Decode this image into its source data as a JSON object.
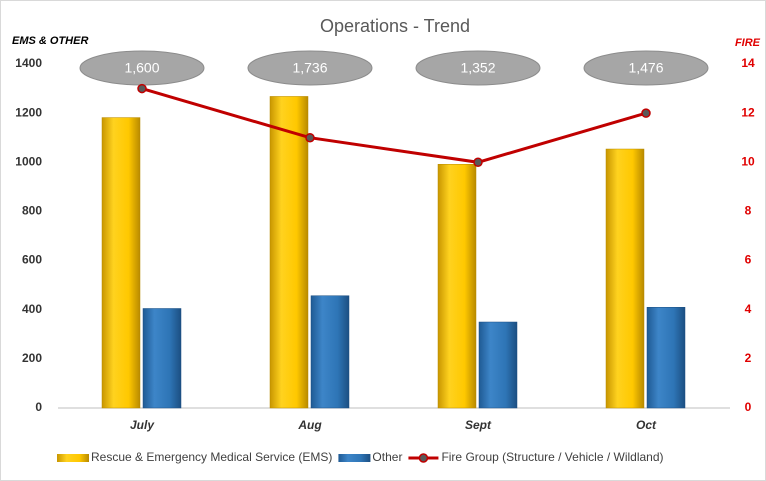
{
  "chart_data": {
    "type": "bar",
    "title": "Operations - Trend",
    "y_label": "EMS & OTHER",
    "y2_label": "FIRE",
    "categories": [
      "July",
      "Aug",
      "Sept",
      "Oct"
    ],
    "series": [
      {
        "name": "Rescue & Emergency Medical Service (EMS)",
        "color": "#ffc000",
        "values": [
          1182,
          1268,
          992,
          1054
        ]
      },
      {
        "name": "Other",
        "color": "#2e75b6",
        "values": [
          405,
          457,
          350,
          410
        ]
      },
      {
        "name": "Fire Group (Structure / Vehicle / Wildland)",
        "color": "#c00000",
        "type": "line",
        "axis": "y2",
        "values": [
          13,
          11,
          10,
          12
        ]
      }
    ],
    "annotations": [
      "1,600",
      "1,736",
      "1,352",
      "1,476"
    ],
    "ylim": [
      0,
      1400
    ],
    "yticks": [
      0,
      200,
      400,
      600,
      800,
      1000,
      1200,
      1400
    ],
    "y2lim": [
      0,
      14
    ],
    "y2ticks": [
      0,
      2,
      4,
      6,
      8,
      10,
      12,
      14
    ],
    "grid": false,
    "legend": "bottom"
  }
}
